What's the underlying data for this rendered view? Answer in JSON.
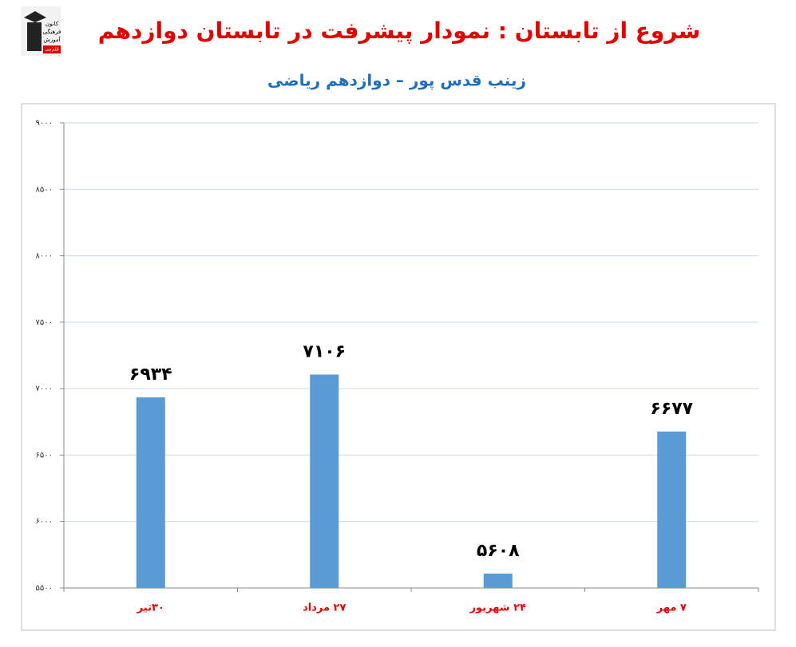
{
  "logo": [
    "کانون",
    "فرهنگی",
    "آموزش",
    "قلم‌چی"
  ],
  "chart_data": {
    "type": "bar",
    "title": "شروع از تابستان : نمودار پیشرفت در تابستان دوازدهم",
    "subtitle": "زینب قدس پور – دوازدهم ریاضی",
    "categories": [
      "۳۰تیر",
      "۲۷ مرداد",
      "۲۴ شهریور",
      "۷ مهر"
    ],
    "values": [
      6934,
      7106,
      5608,
      6677
    ],
    "value_labels": [
      "۶۹۳۴",
      "۷۱۰۶",
      "۵۶۰۸",
      "۶۶۷۷"
    ],
    "color": "#5b9bd5",
    "ylim": [
      5500,
      9000
    ],
    "yticks": [
      {
        "value": 5500,
        "label": "۵۵۰۰"
      },
      {
        "value": 6000,
        "label": "۶۰۰۰"
      },
      {
        "value": 6500,
        "label": "۶۵۰۰"
      },
      {
        "value": 7000,
        "label": "۷۰۰۰"
      },
      {
        "value": 7500,
        "label": "۷۵۰۰"
      },
      {
        "value": 8000,
        "label": "۸۰۰۰"
      },
      {
        "value": 8500,
        "label": "۸۵۰۰"
      },
      {
        "value": 9000,
        "label": "۹۰۰۰"
      }
    ],
    "grid": true
  }
}
